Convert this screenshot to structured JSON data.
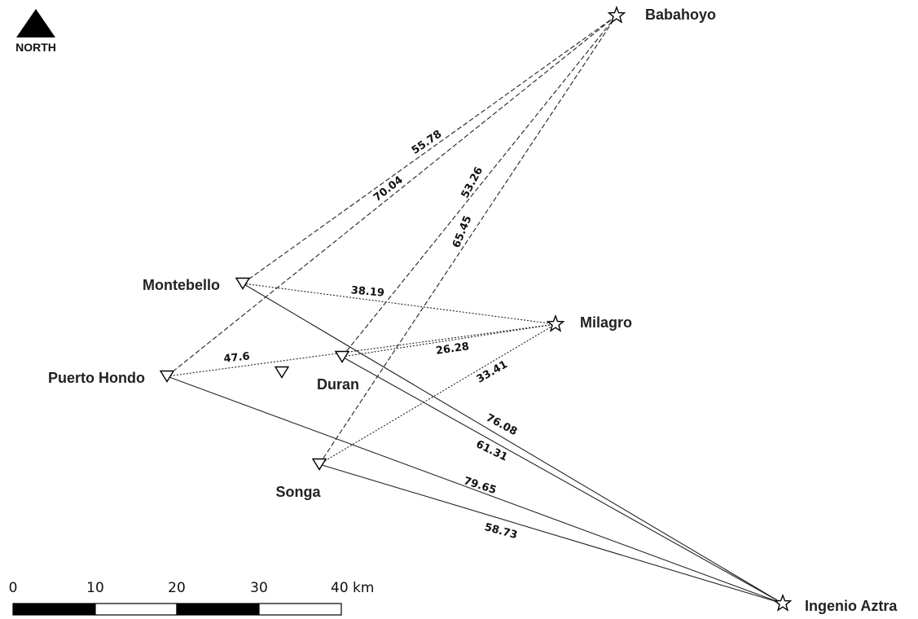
{
  "north": {
    "label": "NORTH",
    "icon": "north-arrow-icon"
  },
  "stations": [
    {
      "id": "babahoyo",
      "name": "Babahoyo",
      "symbol": "star-icon"
    },
    {
      "id": "milagro",
      "name": "Milagro",
      "symbol": "star-icon"
    },
    {
      "id": "ingenio",
      "name": "Ingenio Aztra",
      "symbol": "star-icon"
    },
    {
      "id": "montebello",
      "name": "Montebello",
      "symbol": "triangle-down-icon"
    },
    {
      "id": "puerto",
      "name": "Puerto Hondo",
      "symbol": "triangle-down-icon"
    },
    {
      "id": "duran",
      "name": "Duran",
      "symbol": "triangle-down-icon"
    },
    {
      "id": "songa",
      "name": "Songa",
      "symbol": "triangle-down-icon"
    },
    {
      "id": "unnamed",
      "name": "",
      "symbol": "triangle-down-icon"
    }
  ],
  "links": [
    {
      "from": "montebello",
      "to": "babahoyo",
      "distance": "55.78",
      "style": "dashed"
    },
    {
      "from": "puerto",
      "to": "babahoyo",
      "distance": "70.04",
      "style": "dashed"
    },
    {
      "from": "duran",
      "to": "babahoyo",
      "distance": "53.26",
      "style": "dashed"
    },
    {
      "from": "songa",
      "to": "babahoyo",
      "distance": "65.45",
      "style": "dashed"
    },
    {
      "from": "montebello",
      "to": "milagro",
      "distance": "38.19",
      "style": "dotted"
    },
    {
      "from": "puerto",
      "to": "milagro",
      "distance": "47.6",
      "style": "dotted"
    },
    {
      "from": "duran",
      "to": "milagro",
      "distance": "26.28",
      "style": "dotted"
    },
    {
      "from": "songa",
      "to": "milagro",
      "distance": "33.41",
      "style": "dotted"
    },
    {
      "from": "montebello",
      "to": "ingenio",
      "distance": "76.08",
      "style": "solid"
    },
    {
      "from": "duran",
      "to": "ingenio",
      "distance": "61.31",
      "style": "solid"
    },
    {
      "from": "puerto",
      "to": "ingenio",
      "distance": "79.65",
      "style": "solid"
    },
    {
      "from": "songa",
      "to": "ingenio",
      "distance": "58.73",
      "style": "solid"
    }
  ],
  "scale_bar": {
    "ticks": [
      "0",
      "10",
      "20",
      "30",
      "40 km"
    ]
  }
}
